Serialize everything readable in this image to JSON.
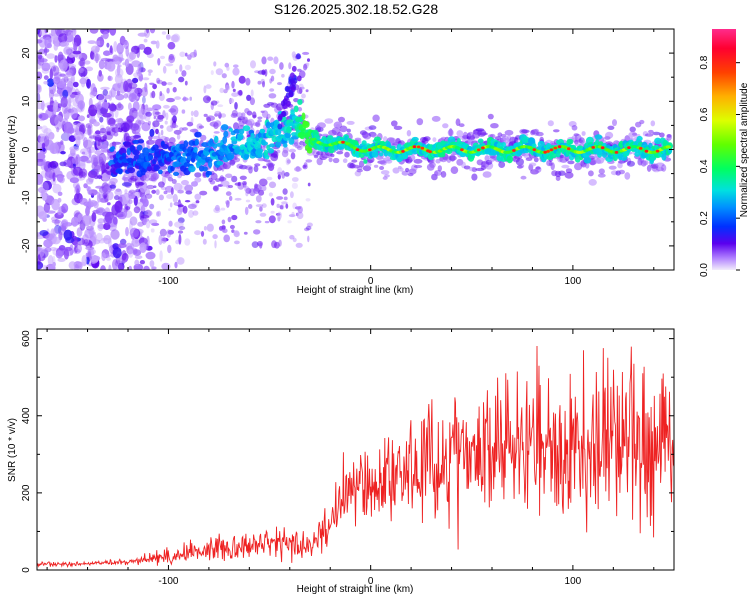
{
  "title": "S126.2025.302.18.52.G28",
  "chart_data": [
    {
      "type": "heatmap",
      "xlabel": "Height of straight line (km)",
      "ylabel": "Frequency (Hz)",
      "xlim": [
        -165,
        150
      ],
      "ylim": [
        -25,
        25
      ],
      "xticks": [
        -100,
        0,
        100
      ],
      "yticks": [
        -20,
        -10,
        0,
        10,
        20
      ],
      "colorbar": {
        "label": "Normalized spectral amplitude",
        "range": [
          0.0,
          0.93
        ],
        "ticks": [
          0.0,
          0.2,
          0.4,
          0.6,
          0.8
        ],
        "colormap": [
          "#f2ecfb",
          "#a060ff",
          "#4400ee",
          "#0030ff",
          "#00c8ff",
          "#00ff80",
          "#60ff00",
          "#ffff00",
          "#ff8000",
          "#ff0000",
          "#ff1060",
          "#ff2c8c"
        ]
      },
      "ridge": {
        "description": "dominant frequency versus height",
        "x": [
          -120,
          -100,
          -80,
          -60,
          -45,
          -35,
          -30,
          0,
          50,
          100,
          148
        ],
        "y": [
          -2,
          -2,
          -1,
          1,
          4,
          6,
          2,
          0,
          0,
          0,
          0
        ]
      }
    },
    {
      "type": "line",
      "xlabel": "Height of straight line (km)",
      "ylabel": "SNR (10 * v/v)",
      "xlim": [
        -165,
        150
      ],
      "ylim": [
        0,
        625
      ],
      "xticks": [
        -100,
        0,
        100
      ],
      "yticks": [
        0,
        200,
        400,
        600
      ],
      "series": [
        {
          "name": "SNR",
          "color": "#ee2222",
          "x": [
            -165,
            -150,
            -120,
            -110,
            -100,
            -80,
            -60,
            -40,
            -30,
            -22,
            -18,
            -10,
            0,
            20,
            30,
            40,
            60,
            80,
            100,
            120,
            148
          ],
          "y": [
            15,
            15,
            20,
            30,
            35,
            55,
            65,
            70,
            60,
            110,
            150,
            200,
            230,
            260,
            280,
            300,
            320,
            330,
            330,
            340,
            330
          ]
        }
      ]
    }
  ]
}
